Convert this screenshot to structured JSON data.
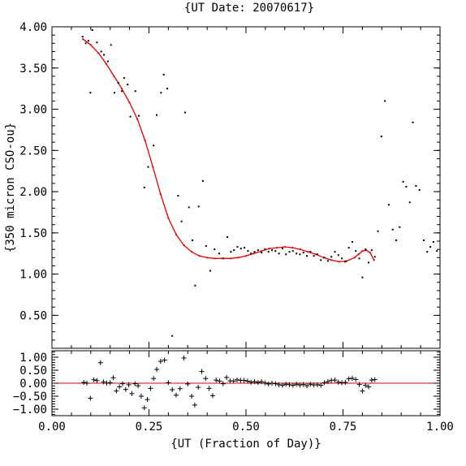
{
  "chart_data": [
    {
      "type": "scatter",
      "title": "{UT Date: 20070617}",
      "xlabel": "",
      "ylabel": "{350 micron CSO-ou}",
      "xlim": [
        0,
        1
      ],
      "ylim": [
        0.1,
        4.0
      ],
      "x_ticks": [
        "",
        "",
        "",
        "",
        ""
      ],
      "y_ticks": [
        "4.00",
        "3.50",
        "3.00",
        "2.50",
        "2.00",
        "1.50",
        "1.00",
        "0.50"
      ],
      "grid": false,
      "colors": {
        "points": "#000000",
        "fit": "#e00000"
      },
      "series": [
        {
          "name": "",
          "mark": "dot",
          "points": [
            [
              0.079,
              3.88
            ],
            [
              0.087,
              3.8
            ],
            [
              0.094,
              3.83
            ],
            [
              0.099,
              3.2
            ],
            [
              0.104,
              3.96
            ],
            [
              0.116,
              3.81
            ],
            [
              0.127,
              3.7
            ],
            [
              0.134,
              3.66
            ],
            [
              0.144,
              3.58
            ],
            [
              0.152,
              3.78
            ],
            [
              0.161,
              3.2
            ],
            [
              0.171,
              3.32
            ],
            [
              0.18,
              3.22
            ],
            [
              0.186,
              3.38
            ],
            [
              0.195,
              3.3
            ],
            [
              0.202,
              2.91
            ],
            [
              0.215,
              3.22
            ],
            [
              0.224,
              2.92
            ],
            [
              0.238,
              2.05
            ],
            [
              0.248,
              2.3
            ],
            [
              0.262,
              2.56
            ],
            [
              0.27,
              2.93
            ],
            [
              0.281,
              3.2
            ],
            [
              0.288,
              3.42
            ],
            [
              0.297,
              3.25
            ],
            [
              0.31,
              0.25
            ],
            [
              0.325,
              1.95
            ],
            [
              0.334,
              1.64
            ],
            [
              0.343,
              2.96
            ],
            [
              0.353,
              1.81
            ],
            [
              0.362,
              1.41
            ],
            [
              0.369,
              0.86
            ],
            [
              0.378,
              1.82
            ],
            [
              0.389,
              2.13
            ],
            [
              0.397,
              1.34
            ],
            [
              0.408,
              1.04
            ],
            [
              0.419,
              1.3
            ],
            [
              0.431,
              1.25
            ],
            [
              0.441,
              1.19
            ],
            [
              0.452,
              1.45
            ],
            [
              0.461,
              1.27
            ],
            [
              0.469,
              1.29
            ],
            [
              0.478,
              1.33
            ],
            [
              0.487,
              1.31
            ],
            [
              0.496,
              1.32
            ],
            [
              0.505,
              1.28
            ],
            [
              0.513,
              1.25
            ],
            [
              0.522,
              1.27
            ],
            [
              0.531,
              1.29
            ],
            [
              0.54,
              1.26
            ],
            [
              0.549,
              1.3
            ],
            [
              0.558,
              1.27
            ],
            [
              0.567,
              1.29
            ],
            [
              0.576,
              1.28
            ],
            [
              0.585,
              1.25
            ],
            [
              0.594,
              1.31
            ],
            [
              0.603,
              1.24
            ],
            [
              0.612,
              1.27
            ],
            [
              0.621,
              1.28
            ],
            [
              0.63,
              1.25
            ],
            [
              0.639,
              1.24
            ],
            [
              0.648,
              1.26
            ],
            [
              0.657,
              1.22
            ],
            [
              0.666,
              1.27
            ],
            [
              0.675,
              1.22
            ],
            [
              0.684,
              1.24
            ],
            [
              0.693,
              1.17
            ],
            [
              0.702,
              1.2
            ],
            [
              0.711,
              1.16
            ],
            [
              0.72,
              1.21
            ],
            [
              0.729,
              1.27
            ],
            [
              0.738,
              1.23
            ],
            [
              0.747,
              1.19
            ],
            [
              0.756,
              1.15
            ],
            [
              0.765,
              1.32
            ],
            [
              0.774,
              1.39
            ],
            [
              0.783,
              1.28
            ],
            [
              0.792,
              1.19
            ],
            [
              0.8,
              0.96
            ],
            [
              0.808,
              1.3
            ],
            [
              0.816,
              1.14
            ],
            [
              0.824,
              1.29
            ],
            [
              0.832,
              1.21
            ],
            [
              0.84,
              1.52
            ],
            [
              0.849,
              2.67
            ],
            [
              0.858,
              3.1
            ],
            [
              0.868,
              1.84
            ],
            [
              0.878,
              1.54
            ],
            [
              0.887,
              1.41
            ],
            [
              0.896,
              1.57
            ],
            [
              0.905,
              2.12
            ],
            [
              0.913,
              2.06
            ],
            [
              0.922,
              1.87
            ],
            [
              0.93,
              2.84
            ],
            [
              0.938,
              2.07
            ],
            [
              0.947,
              2.02
            ],
            [
              0.958,
              1.41
            ],
            [
              0.967,
              1.27
            ],
            [
              0.975,
              1.33
            ],
            [
              0.983,
              1.39
            ],
            [
              0.992,
              1.28
            ]
          ]
        },
        {
          "name": "",
          "mark": "line",
          "points": [
            [
              0.08,
              3.85
            ],
            [
              0.1,
              3.78
            ],
            [
              0.12,
              3.68
            ],
            [
              0.14,
              3.55
            ],
            [
              0.16,
              3.4
            ],
            [
              0.18,
              3.25
            ],
            [
              0.2,
              3.08
            ],
            [
              0.22,
              2.88
            ],
            [
              0.24,
              2.62
            ],
            [
              0.26,
              2.3
            ],
            [
              0.28,
              1.97
            ],
            [
              0.3,
              1.68
            ],
            [
              0.32,
              1.48
            ],
            [
              0.34,
              1.35
            ],
            [
              0.36,
              1.27
            ],
            [
              0.38,
              1.22
            ],
            [
              0.4,
              1.2
            ],
            [
              0.42,
              1.19
            ],
            [
              0.44,
              1.19
            ],
            [
              0.46,
              1.19
            ],
            [
              0.48,
              1.2
            ],
            [
              0.5,
              1.22
            ],
            [
              0.52,
              1.25
            ],
            [
              0.54,
              1.28
            ],
            [
              0.56,
              1.31
            ],
            [
              0.58,
              1.32
            ],
            [
              0.6,
              1.33
            ],
            [
              0.62,
              1.32
            ],
            [
              0.64,
              1.3
            ],
            [
              0.66,
              1.27
            ],
            [
              0.68,
              1.24
            ],
            [
              0.7,
              1.2
            ],
            [
              0.72,
              1.17
            ],
            [
              0.74,
              1.15
            ],
            [
              0.76,
              1.16
            ],
            [
              0.78,
              1.2
            ],
            [
              0.79,
              1.24
            ],
            [
              0.8,
              1.28
            ],
            [
              0.81,
              1.29
            ],
            [
              0.82,
              1.26
            ],
            [
              0.83,
              1.17
            ]
          ]
        }
      ]
    },
    {
      "type": "scatter",
      "title": "",
      "xlabel": "{UT (Fraction of Day)}",
      "ylabel": "",
      "xlim": [
        0,
        1
      ],
      "ylim": [
        -1.25,
        1.25
      ],
      "x_ticks": [
        "0.00",
        "0.25",
        "0.50",
        "0.75",
        "1.00"
      ],
      "y_ticks": [
        "1.00",
        "0.50",
        "0.00",
        "−0.50",
        "−1.00"
      ],
      "grid": false,
      "colors": {
        "points": "#000000",
        "zero_line": "#e00000"
      },
      "series": [
        {
          "name": "",
          "mark": "plus",
          "points": [
            [
              0.082,
              0.03
            ],
            [
              0.09,
              0.0
            ],
            [
              0.099,
              -0.58
            ],
            [
              0.108,
              0.13
            ],
            [
              0.116,
              0.1
            ],
            [
              0.125,
              0.79
            ],
            [
              0.133,
              0.05
            ],
            [
              0.141,
              0.0
            ],
            [
              0.15,
              0.02
            ],
            [
              0.158,
              0.21
            ],
            [
              0.166,
              -0.3
            ],
            [
              0.174,
              -0.14
            ],
            [
              0.182,
              -0.02
            ],
            [
              0.19,
              -0.24
            ],
            [
              0.198,
              -0.06
            ],
            [
              0.206,
              -0.4
            ],
            [
              0.214,
              -0.02
            ],
            [
              0.222,
              -0.1
            ],
            [
              0.23,
              -0.5
            ],
            [
              0.238,
              -0.95
            ],
            [
              0.246,
              -0.63
            ],
            [
              0.254,
              -0.2
            ],
            [
              0.262,
              0.18
            ],
            [
              0.27,
              0.53
            ],
            [
              0.28,
              0.84
            ],
            [
              0.29,
              0.89
            ],
            [
              0.3,
              0.02
            ],
            [
              0.31,
              -0.25
            ],
            [
              0.32,
              -0.46
            ],
            [
              0.33,
              -0.21
            ],
            [
              0.34,
              0.97
            ],
            [
              0.35,
              -0.03
            ],
            [
              0.36,
              -0.5
            ],
            [
              0.368,
              -0.84
            ],
            [
              0.377,
              -0.16
            ],
            [
              0.386,
              0.45
            ],
            [
              0.396,
              0.18
            ],
            [
              0.405,
              -0.2
            ],
            [
              0.414,
              -0.48
            ],
            [
              0.423,
              0.12
            ],
            [
              0.432,
              0.08
            ],
            [
              0.441,
              -0.02
            ],
            [
              0.45,
              0.22
            ],
            [
              0.459,
              0.09
            ],
            [
              0.468,
              0.08
            ],
            [
              0.477,
              0.13
            ],
            [
              0.486,
              0.11
            ],
            [
              0.495,
              0.11
            ],
            [
              0.504,
              0.08
            ],
            [
              0.513,
              0.04
            ],
            [
              0.522,
              0.06
            ],
            [
              0.531,
              0.03
            ],
            [
              0.54,
              0.06
            ],
            [
              0.549,
              0.01
            ],
            [
              0.558,
              -0.03
            ],
            [
              0.567,
              0.0
            ],
            [
              0.576,
              -0.02
            ],
            [
              0.585,
              -0.06
            ],
            [
              0.594,
              -0.08
            ],
            [
              0.603,
              -0.04
            ],
            [
              0.612,
              -0.06
            ],
            [
              0.621,
              -0.08
            ],
            [
              0.63,
              -0.04
            ],
            [
              0.639,
              -0.07
            ],
            [
              0.648,
              -0.05
            ],
            [
              0.657,
              -0.1
            ],
            [
              0.666,
              -0.04
            ],
            [
              0.675,
              -0.07
            ],
            [
              0.684,
              -0.06
            ],
            [
              0.693,
              -0.08
            ],
            [
              0.702,
              0.02
            ],
            [
              0.711,
              0.06
            ],
            [
              0.72,
              0.11
            ],
            [
              0.729,
              0.12
            ],
            [
              0.738,
              0.04
            ],
            [
              0.747,
              0.02
            ],
            [
              0.756,
              0.03
            ],
            [
              0.765,
              0.17
            ],
            [
              0.774,
              0.19
            ],
            [
              0.783,
              0.14
            ],
            [
              0.792,
              -0.05
            ],
            [
              0.8,
              -0.3
            ],
            [
              0.808,
              -0.08
            ],
            [
              0.816,
              -0.14
            ],
            [
              0.824,
              0.12
            ],
            [
              0.832,
              0.14
            ]
          ]
        }
      ]
    }
  ]
}
